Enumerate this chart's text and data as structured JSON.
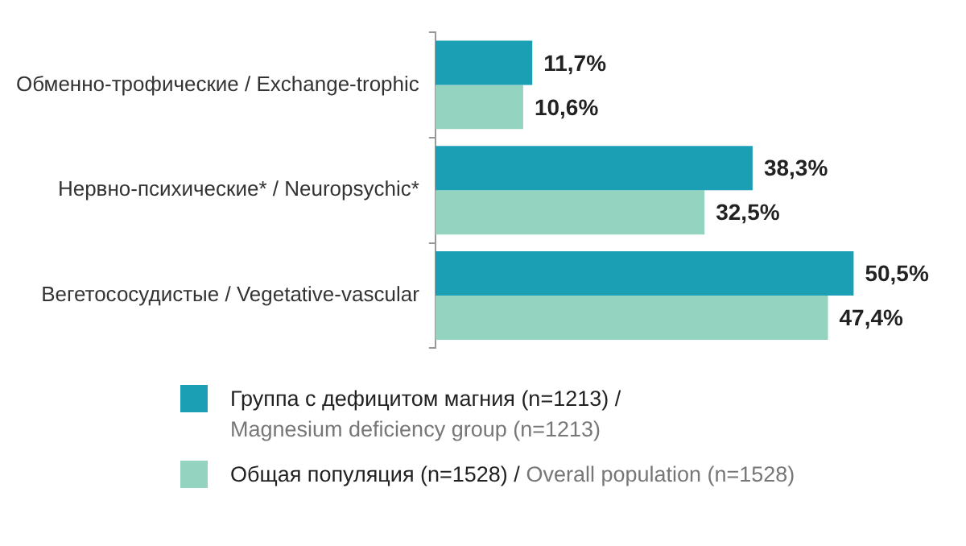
{
  "chart_data": {
    "type": "bar",
    "orientation": "horizontal",
    "legend": "bottom",
    "categories": [
      "Обменно-трофические / Exchange-trophic",
      "Нервно-психические* / Neuropsychic*",
      "Вегетососудистые / Vegetative-vascular"
    ],
    "series": [
      {
        "name": "Группа с дефицитом магния (n=1213) / Magnesium deficiency group (n=1213)",
        "color": "#1a9fb5",
        "values": [
          11.7,
          38.3,
          50.5
        ],
        "value_labels": [
          "11,7%",
          "38,3%",
          "50,5%"
        ]
      },
      {
        "name": "Общая популяция (n=1528) / Overall population (n=1528)",
        "color": "#93d3bf",
        "values": [
          10.6,
          32.5,
          47.4
        ],
        "value_labels": [
          "10,6%",
          "32,5%",
          "47,4%"
        ]
      }
    ]
  }
}
